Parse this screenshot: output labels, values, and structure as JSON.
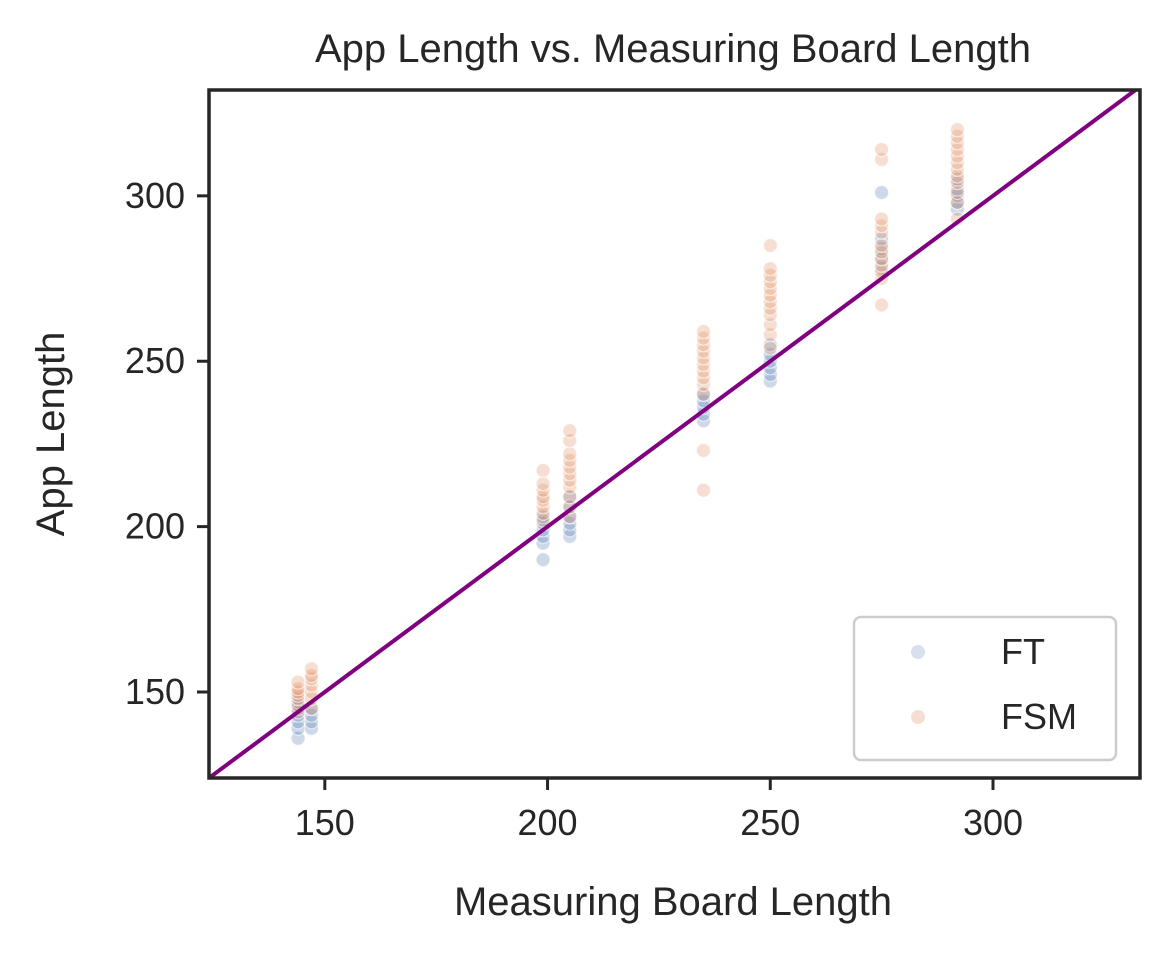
{
  "chart_data": {
    "type": "scatter",
    "title": "App Length vs. Measuring Board Length",
    "xlabel": "Measuring Board Length",
    "ylabel": "App Length",
    "xlim": [
      124,
      333
    ],
    "ylim": [
      124,
      332
    ],
    "xticks": [
      150,
      200,
      250,
      300
    ],
    "yticks": [
      150,
      200,
      250,
      300
    ],
    "grid": false,
    "legend_position": "lower-right",
    "reference_line": {
      "label": "",
      "slope": 1,
      "intercept": 0,
      "color": "#800080"
    },
    "series": [
      {
        "name": "FT",
        "color": "#4c72b0",
        "points": [
          [
            144,
            136
          ],
          [
            144,
            139
          ],
          [
            144,
            141
          ],
          [
            144,
            143
          ],
          [
            144,
            145
          ],
          [
            144,
            147
          ],
          [
            147,
            139
          ],
          [
            147,
            141
          ],
          [
            147,
            143
          ],
          [
            147,
            145
          ],
          [
            199,
            190
          ],
          [
            199,
            195
          ],
          [
            199,
            197
          ],
          [
            199,
            199
          ],
          [
            199,
            201
          ],
          [
            199,
            203
          ],
          [
            205,
            197
          ],
          [
            205,
            199
          ],
          [
            205,
            201
          ],
          [
            205,
            203
          ],
          [
            205,
            206
          ],
          [
            205,
            209
          ],
          [
            235,
            232
          ],
          [
            235,
            234
          ],
          [
            235,
            236
          ],
          [
            235,
            238
          ],
          [
            235,
            240
          ],
          [
            250,
            244
          ],
          [
            250,
            246
          ],
          [
            250,
            248
          ],
          [
            250,
            250
          ],
          [
            250,
            252
          ],
          [
            250,
            255
          ],
          [
            275,
            278
          ],
          [
            275,
            281
          ],
          [
            275,
            284
          ],
          [
            275,
            287
          ],
          [
            275,
            301
          ],
          [
            292,
            296
          ],
          [
            292,
            298
          ],
          [
            292,
            300
          ],
          [
            292,
            302
          ],
          [
            292,
            305
          ]
        ]
      },
      {
        "name": "FSM",
        "color": "#dd8452",
        "points": [
          [
            144,
            144
          ],
          [
            144,
            146
          ],
          [
            144,
            148
          ],
          [
            144,
            149
          ],
          [
            144,
            150
          ],
          [
            144,
            151
          ],
          [
            144,
            153
          ],
          [
            147,
            145
          ],
          [
            147,
            148
          ],
          [
            147,
            150
          ],
          [
            147,
            152
          ],
          [
            147,
            154
          ],
          [
            147,
            155
          ],
          [
            147,
            157
          ],
          [
            199,
            202
          ],
          [
            199,
            204
          ],
          [
            199,
            206
          ],
          [
            199,
            208
          ],
          [
            199,
            209
          ],
          [
            199,
            211
          ],
          [
            199,
            213
          ],
          [
            199,
            217
          ],
          [
            205,
            203
          ],
          [
            205,
            206
          ],
          [
            205,
            209
          ],
          [
            205,
            212
          ],
          [
            205,
            214
          ],
          [
            205,
            216
          ],
          [
            205,
            218
          ],
          [
            205,
            220
          ],
          [
            205,
            222
          ],
          [
            205,
            226
          ],
          [
            205,
            229
          ],
          [
            235,
            211
          ],
          [
            235,
            223
          ],
          [
            235,
            240
          ],
          [
            235,
            243
          ],
          [
            235,
            245
          ],
          [
            235,
            247
          ],
          [
            235,
            249
          ],
          [
            235,
            251
          ],
          [
            235,
            253
          ],
          [
            235,
            255
          ],
          [
            235,
            257
          ],
          [
            235,
            259
          ],
          [
            250,
            254
          ],
          [
            250,
            258
          ],
          [
            250,
            261
          ],
          [
            250,
            264
          ],
          [
            250,
            266
          ],
          [
            250,
            268
          ],
          [
            250,
            270
          ],
          [
            250,
            272
          ],
          [
            250,
            274
          ],
          [
            250,
            276
          ],
          [
            250,
            278
          ],
          [
            250,
            285
          ],
          [
            275,
            267
          ],
          [
            275,
            275
          ],
          [
            275,
            277
          ],
          [
            275,
            279
          ],
          [
            275,
            281
          ],
          [
            275,
            283
          ],
          [
            275,
            285
          ],
          [
            275,
            289
          ],
          [
            275,
            291
          ],
          [
            275,
            293
          ],
          [
            275,
            311
          ],
          [
            275,
            314
          ],
          [
            292,
            293
          ],
          [
            292,
            298
          ],
          [
            292,
            301
          ],
          [
            292,
            304
          ],
          [
            292,
            306
          ],
          [
            292,
            308
          ],
          [
            292,
            310
          ],
          [
            292,
            312
          ],
          [
            292,
            314
          ],
          [
            292,
            316
          ],
          [
            292,
            318
          ],
          [
            292,
            320
          ]
        ]
      }
    ]
  }
}
